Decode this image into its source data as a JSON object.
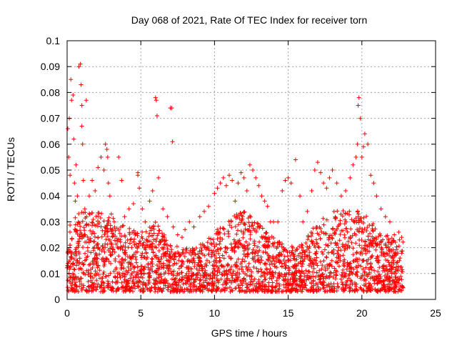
{
  "chart_data": {
    "type": "scatter",
    "title": "Day 068 of 2021, Rate Of TEC Index for receiver torn",
    "xlabel": "GPS time / hours",
    "ylabel": "ROTI / TECUs",
    "xlim": [
      0,
      25
    ],
    "ylim": [
      0,
      0.1
    ],
    "x_ticks": [
      "0",
      "5",
      "10",
      "15",
      "20",
      "25"
    ],
    "y_ticks": [
      "0",
      "0.01",
      "0.02",
      "0.03",
      "0.04",
      "0.05",
      "0.06",
      "0.07",
      "0.08",
      "0.09",
      "0.1"
    ],
    "grid": true,
    "marker": "+",
    "marker_color": "#ff0000",
    "series": [
      {
        "x": [
          0.05,
          0.1,
          0.15,
          0.2,
          0.25,
          0.3,
          0.4,
          0.45,
          0.5,
          0.55,
          0.6,
          0.7,
          0.8,
          0.9,
          0.95,
          1.0,
          1.0,
          1.05,
          1.1,
          1.2,
          1.3,
          1.5,
          1.7,
          1.9,
          2.1,
          2.3,
          2.5,
          2.6,
          2.7,
          2.75,
          2.8,
          2.9,
          3.0,
          3.2,
          3.5,
          3.7,
          3.9,
          4.2,
          4.5,
          4.8,
          4.8,
          4.9,
          5.1,
          5.3,
          5.6,
          5.8,
          6.0,
          6.05,
          6.1,
          6.2,
          6.5,
          6.8,
          7.0,
          7.1,
          7.15,
          7.2,
          7.5,
          7.8,
          8.0,
          8.3,
          8.6,
          9.0,
          9.3,
          9.6,
          10.0,
          10.2,
          10.4,
          10.6,
          10.8,
          11.0,
          11.2,
          11.4,
          11.6,
          11.8,
          12.0,
          12.2,
          12.4,
          12.6,
          12.8,
          13.0,
          13.2,
          13.4,
          13.6,
          13.8,
          14.0,
          14.3,
          14.6,
          14.8,
          15.0,
          15.2,
          15.5,
          15.8,
          16.0,
          16.3,
          16.6,
          16.8,
          17.0,
          17.2,
          17.4,
          17.6,
          17.8,
          18.0,
          18.3,
          18.6,
          18.9,
          19.2,
          19.4,
          19.6,
          19.7,
          19.75,
          19.8,
          19.9,
          20.0,
          20.1,
          20.2,
          20.4,
          20.6,
          20.8,
          21.0,
          21.3,
          21.6,
          21.9,
          22.2,
          22.5,
          22.7
        ],
        "y": [
          0.066,
          0.055,
          0.07,
          0.048,
          0.085,
          0.077,
          0.079,
          0.062,
          0.045,
          0.038,
          0.052,
          0.04,
          0.09,
          0.091,
          0.083,
          0.075,
          0.067,
          0.06,
          0.046,
          0.035,
          0.077,
          0.04,
          0.046,
          0.042,
          0.051,
          0.055,
          0.05,
          0.06,
          0.058,
          0.055,
          0.045,
          0.04,
          0.033,
          0.03,
          0.055,
          0.046,
          0.032,
          0.035,
          0.037,
          0.049,
          0.048,
          0.043,
          0.035,
          0.03,
          0.038,
          0.042,
          0.078,
          0.077,
          0.071,
          0.047,
          0.035,
          0.032,
          0.074,
          0.074,
          0.061,
          0.028,
          0.025,
          0.024,
          0.027,
          0.03,
          0.028,
          0.032,
          0.034,
          0.036,
          0.041,
          0.043,
          0.045,
          0.047,
          0.044,
          0.048,
          0.046,
          0.038,
          0.045,
          0.049,
          0.047,
          0.042,
          0.052,
          0.05,
          0.047,
          0.044,
          0.04,
          0.038,
          0.036,
          0.03,
          0.03,
          0.03,
          0.042,
          0.046,
          0.047,
          0.045,
          0.054,
          0.04,
          0.03,
          0.034,
          0.042,
          0.05,
          0.053,
          0.049,
          0.045,
          0.043,
          0.047,
          0.05,
          0.045,
          0.04,
          0.042,
          0.047,
          0.052,
          0.055,
          0.06,
          0.075,
          0.078,
          0.07,
          0.055,
          0.059,
          0.064,
          0.06,
          0.048,
          0.045,
          0.04,
          0.035,
          0.032,
          0.03,
          0.025,
          0.026,
          0.024
        ]
      }
    ],
    "dense_band": {
      "note": "dense cloud of points between x=0 and x=22.8",
      "y_low": 0.003,
      "y_high_profile_x": [
        0,
        1,
        2,
        3,
        4,
        5,
        6,
        7,
        8,
        9,
        10,
        11,
        12,
        13,
        14,
        15,
        16,
        17,
        18,
        19,
        20,
        21,
        22,
        22.8
      ],
      "y_high_profile_y": [
        0.03,
        0.034,
        0.035,
        0.032,
        0.028,
        0.026,
        0.03,
        0.022,
        0.02,
        0.021,
        0.026,
        0.032,
        0.034,
        0.03,
        0.024,
        0.02,
        0.022,
        0.03,
        0.034,
        0.035,
        0.034,
        0.028,
        0.024,
        0.024
      ]
    }
  }
}
